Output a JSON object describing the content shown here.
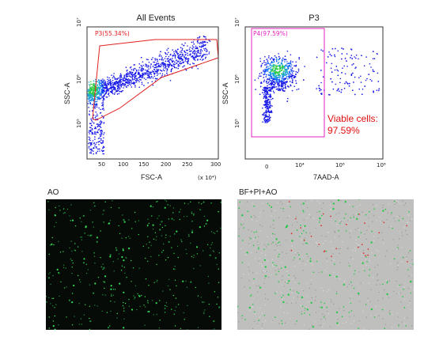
{
  "plot1": {
    "title": "All Events",
    "xlabel": "FSC-A",
    "ylabel": "SSC-A",
    "xticks": [
      "50",
      "100",
      "150",
      "200",
      "250",
      "300"
    ],
    "xscale_label": "(x 10⁴)",
    "yticks": [
      "10⁷",
      "10⁶",
      "10⁵"
    ],
    "gate_label": "P3(55.34%)",
    "gate_color": "#e02020"
  },
  "plot2": {
    "title": "P3",
    "xlabel": "7AAD-A",
    "ylabel": "SSC-A",
    "xticks": [
      "0",
      "10⁴",
      "10⁶",
      "10⁸"
    ],
    "yticks": [
      "10⁷",
      "10⁶",
      "10⁵"
    ],
    "gate_label": "P4(97.59%)",
    "gate_color": "#e020c0",
    "viable_label": "Viable cells:",
    "viable_value": "97.59%",
    "viable_color": "#e01010"
  },
  "panels": {
    "ao_label": "AO",
    "merge_label": "BF+PI+AO"
  },
  "colors": {
    "dot_low": "#1a1aff",
    "dot_high": "#22cc44",
    "ao_bg": "#060b08",
    "ao_dot": "#33dd55",
    "merge_bg": "#bfc0bd",
    "pi_dot": "#dd3333"
  }
}
